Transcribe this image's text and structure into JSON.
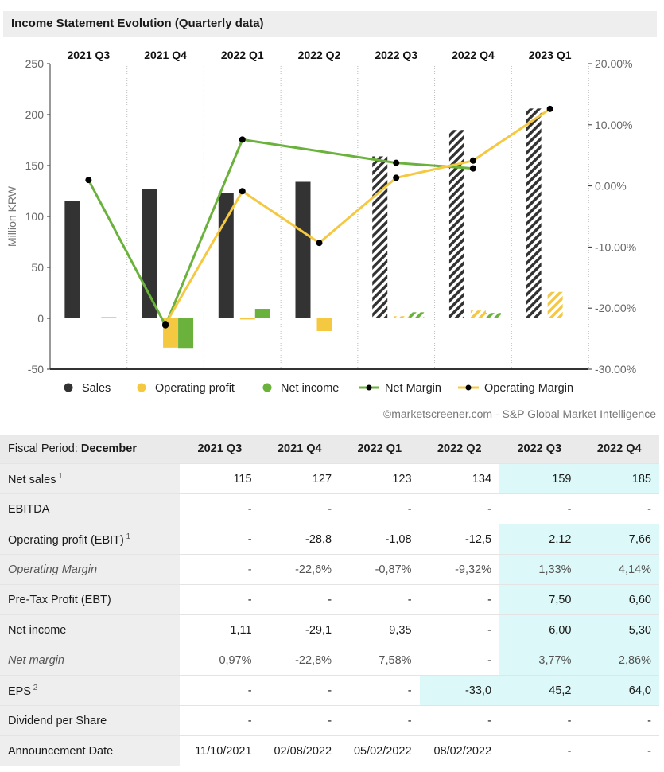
{
  "title": "Income Statement Evolution (Quarterly data)",
  "credit": "©marketscreener.com - S&P Global Market Intelligence",
  "chart_data": {
    "type": "bar+line",
    "categories": [
      "2021 Q3",
      "2021 Q4",
      "2022 Q1",
      "2022 Q2",
      "2022 Q3",
      "2022 Q4",
      "2023 Q1"
    ],
    "estimated": [
      false,
      false,
      false,
      false,
      true,
      true,
      true
    ],
    "ylabel": "Million KRW",
    "ylim": [
      -50,
      250
    ],
    "yticks": [
      -50,
      0,
      50,
      100,
      150,
      200,
      250
    ],
    "y2lim": [
      -30,
      20
    ],
    "y2ticks": [
      "20.00%",
      "10.00%",
      "0.00%",
      "-10.00%",
      "-20.00%",
      "-30.00%"
    ],
    "series": [
      {
        "name": "Sales",
        "kind": "bar",
        "color": "#333333",
        "values": [
          115,
          127,
          123,
          134,
          159,
          185,
          206
        ]
      },
      {
        "name": "Operating profit",
        "kind": "bar",
        "color": "#f5c842",
        "values": [
          null,
          -28.8,
          -1.08,
          -12.5,
          2.12,
          7.66,
          26
        ]
      },
      {
        "name": "Net income",
        "kind": "bar",
        "color": "#6ab23c",
        "values": [
          1.11,
          -29.1,
          9.35,
          null,
          6.0,
          5.3,
          null
        ]
      },
      {
        "name": "Net Margin",
        "kind": "line",
        "color": "#6ab23c",
        "values": [
          0.97,
          -22.8,
          7.58,
          null,
          3.77,
          2.86,
          null
        ]
      },
      {
        "name": "Operating Margin",
        "kind": "line",
        "color": "#f5c842",
        "values": [
          null,
          -22.6,
          -0.87,
          -9.32,
          1.33,
          4.14,
          12.6
        ]
      }
    ],
    "legend": [
      "Sales",
      "Operating profit",
      "Net income",
      "Net Margin",
      "Operating Margin"
    ]
  },
  "table": {
    "fiscal_label": "Fiscal Period: ",
    "fiscal_value": "December",
    "columns": [
      "2021 Q3",
      "2021 Q4",
      "2022 Q1",
      "2022 Q2",
      "2022 Q3",
      "2022 Q4"
    ],
    "rows": [
      {
        "label": "Net sales",
        "sup": "1",
        "italic": false,
        "values": [
          "115",
          "127",
          "123",
          "134",
          "159",
          "185"
        ],
        "hl": [
          false,
          false,
          false,
          false,
          true,
          true
        ]
      },
      {
        "label": "EBITDA",
        "sup": "",
        "italic": false,
        "values": [
          "-",
          "-",
          "-",
          "-",
          "-",
          "-"
        ],
        "hl": [
          false,
          false,
          false,
          false,
          false,
          false
        ]
      },
      {
        "label": "Operating profit (EBIT)",
        "sup": "1",
        "italic": false,
        "values": [
          "-",
          "-28,8",
          "-1,08",
          "-12,5",
          "2,12",
          "7,66"
        ],
        "hl": [
          false,
          false,
          false,
          false,
          true,
          true
        ]
      },
      {
        "label": "Operating Margin",
        "sup": "",
        "italic": true,
        "values": [
          "-",
          "-22,6%",
          "-0,87%",
          "-9,32%",
          "1,33%",
          "4,14%"
        ],
        "hl": [
          false,
          false,
          false,
          false,
          true,
          true
        ]
      },
      {
        "label": "Pre-Tax Profit (EBT)",
        "sup": "",
        "italic": false,
        "values": [
          "-",
          "-",
          "-",
          "-",
          "7,50",
          "6,60"
        ],
        "hl": [
          false,
          false,
          false,
          false,
          true,
          true
        ]
      },
      {
        "label": "Net income",
        "sup": "",
        "italic": false,
        "values": [
          "1,11",
          "-29,1",
          "9,35",
          "-",
          "6,00",
          "5,30"
        ],
        "hl": [
          false,
          false,
          false,
          false,
          true,
          true
        ]
      },
      {
        "label": "Net margin",
        "sup": "",
        "italic": true,
        "values": [
          "0,97%",
          "-22,8%",
          "7,58%",
          "-",
          "3,77%",
          "2,86%"
        ],
        "hl": [
          false,
          false,
          false,
          false,
          true,
          true
        ]
      },
      {
        "label": "EPS",
        "sup": "2",
        "italic": false,
        "values": [
          "-",
          "-",
          "-",
          "-33,0",
          "45,2",
          "64,0"
        ],
        "hl": [
          false,
          false,
          false,
          true,
          true,
          true
        ]
      },
      {
        "label": "Dividend per Share",
        "sup": "",
        "italic": false,
        "values": [
          "-",
          "-",
          "-",
          "-",
          "-",
          "-"
        ],
        "hl": [
          false,
          false,
          false,
          false,
          false,
          false
        ]
      },
      {
        "label": "Announcement Date",
        "sup": "",
        "italic": false,
        "values": [
          "11/10/2021",
          "02/08/2022",
          "05/02/2022",
          "08/02/2022",
          "-",
          "-"
        ],
        "hl": [
          false,
          false,
          false,
          false,
          false,
          false
        ]
      }
    ]
  }
}
